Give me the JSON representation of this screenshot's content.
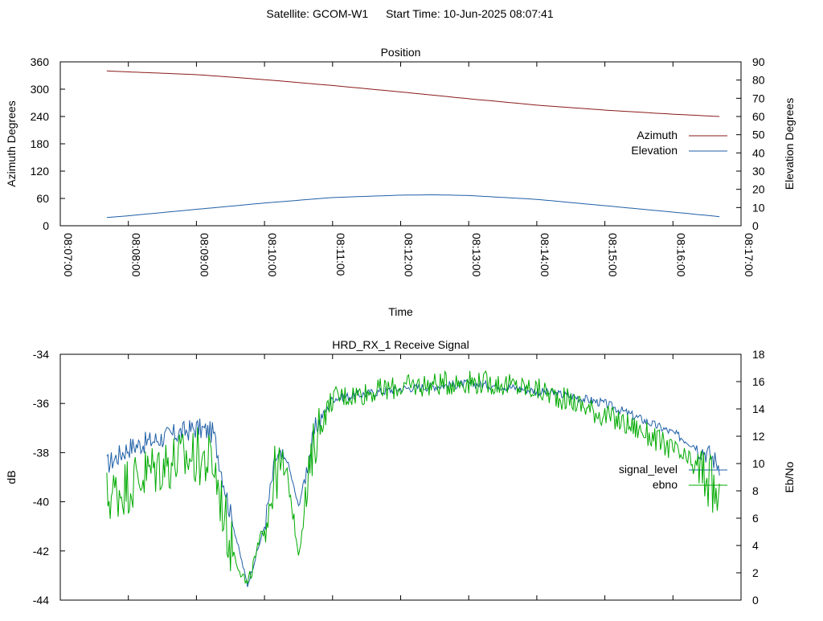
{
  "header": {
    "satellite_label": "Satellite: GCOM-W1",
    "start_time_label": "Start Time: 10-Jun-2025 08:07:41"
  },
  "chart_data": [
    {
      "type": "line",
      "title": "Position",
      "xlabel": "Time",
      "ylabel": "Azimuth Degrees",
      "y2label": "Elevation Degrees",
      "xlim": [
        "08:07:00",
        "08:17:00"
      ],
      "xticks": [
        "08:07:00",
        "08:08:00",
        "08:09:00",
        "08:10:00",
        "08:11:00",
        "08:12:00",
        "08:13:00",
        "08:14:00",
        "08:15:00",
        "08:16:00",
        "08:17:00"
      ],
      "ylim": [
        0,
        360
      ],
      "yticks": [
        0,
        60,
        120,
        180,
        240,
        300,
        360
      ],
      "y2lim": [
        0,
        90
      ],
      "y2ticks": [
        0,
        10,
        20,
        30,
        40,
        50,
        60,
        70,
        80,
        90
      ],
      "legend_position": "right",
      "grid": false,
      "series": [
        {
          "name": "Azimuth",
          "axis": "left",
          "color": "#8b1a1a",
          "x": [
            "08:07:41",
            "08:08:00",
            "08:09:00",
            "08:10:00",
            "08:11:00",
            "08:12:00",
            "08:13:00",
            "08:14:00",
            "08:15:00",
            "08:16:00",
            "08:16:41"
          ],
          "values": [
            340,
            338,
            332,
            321,
            308,
            294,
            279,
            265,
            254,
            245,
            240
          ]
        },
        {
          "name": "Elevation",
          "axis": "right",
          "color": "#1f5fa6",
          "x": [
            "08:07:41",
            "08:08:00",
            "08:09:00",
            "08:10:00",
            "08:11:00",
            "08:12:00",
            "08:12:30",
            "08:13:00",
            "08:14:00",
            "08:15:00",
            "08:16:00",
            "08:16:41"
          ],
          "values": [
            4.5,
            5.5,
            9,
            12.5,
            15.5,
            16.8,
            17,
            16.6,
            14.5,
            11,
            7.5,
            5
          ]
        }
      ]
    },
    {
      "type": "line",
      "title": "HRD_RX_1 Receive Signal",
      "xlabel": "",
      "ylabel": "dB",
      "y2label": "Eb/No",
      "xlim": [
        "08:07:00",
        "08:17:00"
      ],
      "ylim": [
        -44,
        -34
      ],
      "yticks": [
        -44,
        -42,
        -40,
        -38,
        -36,
        -34
      ],
      "y2lim": [
        0,
        18
      ],
      "y2ticks": [
        0,
        2,
        4,
        6,
        8,
        10,
        12,
        14,
        16,
        18
      ],
      "legend_position": "right",
      "grid": false,
      "series": [
        {
          "name": "signal_level",
          "axis": "left",
          "color": "#1f5fa6",
          "x": [
            "08:07:41",
            "08:08:00",
            "08:08:30",
            "08:09:00",
            "08:09:15",
            "08:09:30",
            "08:09:45",
            "08:10:00",
            "08:10:10",
            "08:10:20",
            "08:10:30",
            "08:10:45",
            "08:11:00",
            "08:11:30",
            "08:12:00",
            "08:12:30",
            "08:13:00",
            "08:13:30",
            "08:14:00",
            "08:14:30",
            "08:15:00",
            "08:15:30",
            "08:16:00",
            "08:16:30",
            "08:16:41"
          ],
          "values": [
            -38.5,
            -37.8,
            -37.4,
            -37.0,
            -37.2,
            -40.5,
            -43.4,
            -41.0,
            -38.2,
            -38.3,
            -40.2,
            -37.0,
            -35.8,
            -35.6,
            -35.4,
            -35.3,
            -35.2,
            -35.3,
            -35.5,
            -35.7,
            -36.0,
            -36.6,
            -37.2,
            -38.0,
            -38.5
          ]
        },
        {
          "name": "ebno",
          "axis": "right",
          "color": "#00aa00",
          "x": [
            "08:07:41",
            "08:08:00",
            "08:08:30",
            "08:09:00",
            "08:09:15",
            "08:09:30",
            "08:09:45",
            "08:10:00",
            "08:10:10",
            "08:10:20",
            "08:10:30",
            "08:10:45",
            "08:11:00",
            "08:11:30",
            "08:12:00",
            "08:12:30",
            "08:13:00",
            "08:13:30",
            "08:14:00",
            "08:14:30",
            "08:15:00",
            "08:15:30",
            "08:16:00",
            "08:16:30",
            "08:16:41"
          ],
          "values": [
            7.5,
            8.5,
            10.0,
            10.5,
            10.0,
            4.0,
            1.0,
            5.5,
            9.5,
            9.2,
            3.5,
            12.0,
            14.8,
            15.2,
            15.6,
            15.8,
            16.0,
            15.8,
            15.4,
            14.6,
            13.5,
            12.5,
            11.0,
            9.0,
            7.0
          ]
        }
      ]
    }
  ]
}
